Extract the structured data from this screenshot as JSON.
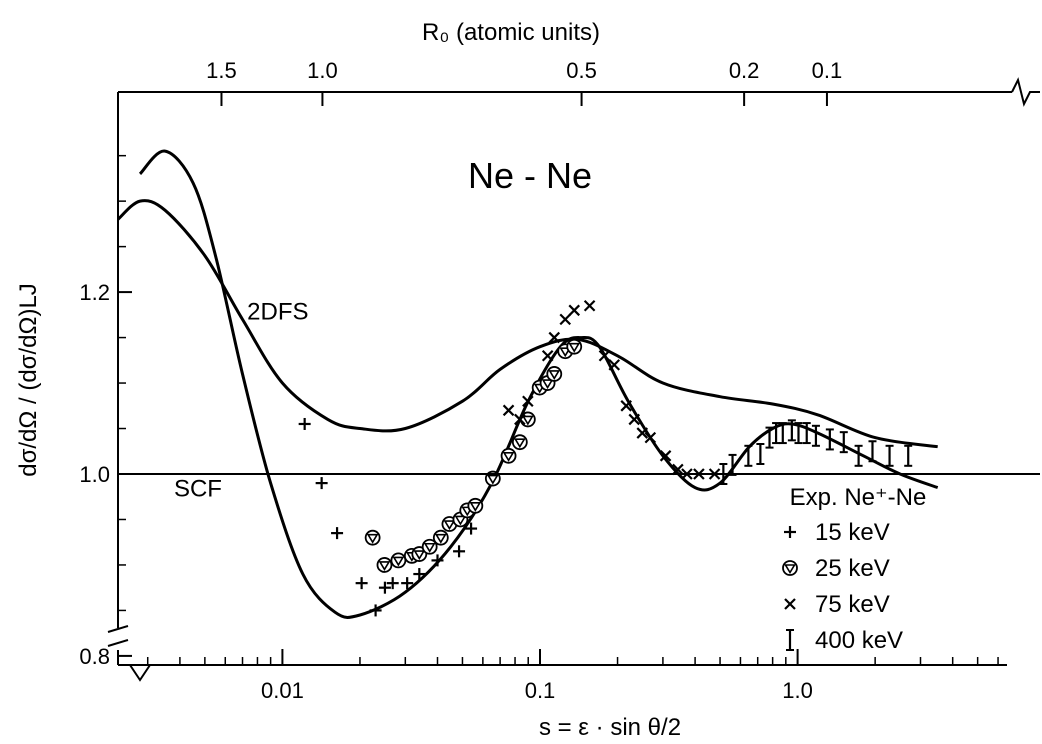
{
  "chart_data": {
    "type": "scatter",
    "title": "Ne - Ne",
    "xlabel": "s = ε · sin θ/2",
    "x_top_label": "R₀ (atomic units)",
    "ylabel": "dσ/dΩ / (dσ/dΩ)LJ",
    "xscale": "log",
    "xlim": [
      0.0023,
      6.5
    ],
    "ylim": [
      0.79,
      1.42
    ],
    "grid": false,
    "reference_line_y": 1.0,
    "x_ticks": [
      {
        "value": 0.01,
        "label": "0.01"
      },
      {
        "value": 0.1,
        "label": "0.1"
      },
      {
        "value": 1.0,
        "label": "1.0"
      }
    ],
    "y_ticks": [
      {
        "value": 0.8,
        "label": "0.8"
      },
      {
        "value": 1.0,
        "label": "1.0"
      },
      {
        "value": 1.2,
        "label": "1.2"
      }
    ],
    "top_ticks": [
      {
        "s": 0.0058,
        "label": "1.5"
      },
      {
        "s": 0.0143,
        "label": "1.0"
      },
      {
        "s": 0.145,
        "label": "0.5"
      },
      {
        "s": 0.62,
        "label": "0.2"
      },
      {
        "s": 1.3,
        "label": "0.1"
      }
    ],
    "curve_labels": [
      {
        "text": "2DFS",
        "x": 0.0096,
        "y": 1.17
      },
      {
        "text": "SCF",
        "x": 0.0047,
        "y": 0.975
      }
    ],
    "legend": {
      "position": "right",
      "title": "Exp. Ne⁺-Ne",
      "entries": [
        {
          "marker": "plus",
          "label": "15 keV"
        },
        {
          "marker": "triangle",
          "label": "25 keV"
        },
        {
          "marker": "cross",
          "label": "75 keV"
        },
        {
          "marker": "errorbar",
          "label": "400 keV"
        }
      ]
    },
    "series": [
      {
        "kind": "curve",
        "curve": "2DFS",
        "points": [
          [
            0.0023,
            1.28
          ],
          [
            0.0028,
            1.3
          ],
          [
            0.0035,
            1.29
          ],
          [
            0.005,
            1.24
          ],
          [
            0.007,
            1.17
          ],
          [
            0.01,
            1.1
          ],
          [
            0.015,
            1.06
          ],
          [
            0.02,
            1.05
          ],
          [
            0.03,
            1.05
          ],
          [
            0.05,
            1.08
          ],
          [
            0.07,
            1.115
          ],
          [
            0.1,
            1.14
          ],
          [
            0.14,
            1.148
          ],
          [
            0.2,
            1.13
          ],
          [
            0.3,
            1.1
          ],
          [
            0.5,
            1.085
          ],
          [
            0.8,
            1.077
          ],
          [
            1.2,
            1.065
          ],
          [
            2.0,
            1.04
          ],
          [
            3.5,
            1.03
          ]
        ]
      },
      {
        "kind": "curve",
        "curve": "SCF",
        "points": [
          [
            0.0028,
            1.33
          ],
          [
            0.0035,
            1.355
          ],
          [
            0.0045,
            1.32
          ],
          [
            0.0055,
            1.24
          ],
          [
            0.007,
            1.11
          ],
          [
            0.009,
            0.99
          ],
          [
            0.012,
            0.89
          ],
          [
            0.016,
            0.848
          ],
          [
            0.02,
            0.845
          ],
          [
            0.03,
            0.87
          ],
          [
            0.045,
            0.92
          ],
          [
            0.065,
            0.99
          ],
          [
            0.09,
            1.08
          ],
          [
            0.12,
            1.14
          ],
          [
            0.145,
            1.15
          ],
          [
            0.17,
            1.14
          ],
          [
            0.22,
            1.08
          ],
          [
            0.3,
            1.02
          ],
          [
            0.4,
            0.985
          ],
          [
            0.5,
            0.99
          ],
          [
            0.65,
            1.03
          ],
          [
            0.8,
            1.05
          ],
          [
            0.95,
            1.055
          ],
          [
            1.2,
            1.045
          ],
          [
            1.8,
            1.02
          ],
          [
            2.5,
            1.0
          ],
          [
            3.5,
            0.985
          ]
        ]
      },
      {
        "kind": "points",
        "marker": "plus",
        "label": "15 keV",
        "points": [
          [
            0.0122,
            1.055
          ],
          [
            0.0142,
            0.99
          ],
          [
            0.0163,
            0.935
          ],
          [
            0.0203,
            0.88
          ],
          [
            0.023,
            0.85
          ],
          [
            0.025,
            0.875
          ],
          [
            0.0268,
            0.88
          ],
          [
            0.0305,
            0.88
          ],
          [
            0.034,
            0.89
          ],
          [
            0.04,
            0.905
          ],
          [
            0.0485,
            0.915
          ],
          [
            0.054,
            0.94
          ]
        ]
      },
      {
        "kind": "points",
        "marker": "triangle",
        "label": "25 keV",
        "points": [
          [
            0.0224,
            0.93
          ],
          [
            0.0249,
            0.9
          ],
          [
            0.0282,
            0.905
          ],
          [
            0.0318,
            0.91
          ],
          [
            0.034,
            0.912
          ],
          [
            0.0373,
            0.92
          ],
          [
            0.0412,
            0.93
          ],
          [
            0.0445,
            0.945
          ],
          [
            0.0491,
            0.95
          ],
          [
            0.0522,
            0.96
          ],
          [
            0.0561,
            0.965
          ],
          [
            0.0656,
            0.995
          ],
          [
            0.0755,
            1.02
          ],
          [
            0.0835,
            1.035
          ],
          [
            0.0897,
            1.06
          ],
          [
            0.0997,
            1.095
          ],
          [
            0.107,
            1.1
          ],
          [
            0.1136,
            1.11
          ],
          [
            0.1253,
            1.135
          ],
          [
            0.1358,
            1.14
          ]
        ]
      },
      {
        "kind": "points",
        "marker": "cross",
        "label": "75 keV",
        "points": [
          [
            0.0755,
            1.07
          ],
          [
            0.0835,
            1.06
          ],
          [
            0.0897,
            1.08
          ],
          [
            0.1071,
            1.13
          ],
          [
            0.1136,
            1.15
          ],
          [
            0.1253,
            1.17
          ],
          [
            0.1358,
            1.18
          ],
          [
            0.1558,
            1.185
          ],
          [
            0.1779,
            1.13
          ],
          [
            0.1942,
            1.12
          ],
          [
            0.2161,
            1.075
          ],
          [
            0.2322,
            1.06
          ],
          [
            0.2495,
            1.045
          ],
          [
            0.2681,
            1.04
          ],
          [
            0.3073,
            1.02
          ],
          [
            0.3429,
            1.005
          ],
          [
            0.3719,
            1.0
          ],
          [
            0.4139,
            1.0
          ],
          [
            0.4761,
            1.0
          ]
        ]
      },
      {
        "kind": "errorbars",
        "marker": "errorbar",
        "label": "400 keV",
        "points": [
          [
            0.515,
            1.0
          ],
          [
            0.559,
            1.01
          ],
          [
            0.644,
            1.02
          ],
          [
            0.717,
            1.022
          ],
          [
            0.778,
            1.04
          ],
          [
            0.825,
            1.045
          ],
          [
            0.876,
            1.045
          ],
          [
            0.95,
            1.048
          ],
          [
            1.008,
            1.045
          ],
          [
            1.085,
            1.045
          ],
          [
            1.178,
            1.042
          ],
          [
            1.334,
            1.038
          ],
          [
            1.511,
            1.035
          ],
          [
            1.725,
            1.02
          ],
          [
            1.953,
            1.025
          ],
          [
            2.275,
            1.02
          ],
          [
            2.688,
            1.02
          ]
        ]
      }
    ]
  }
}
